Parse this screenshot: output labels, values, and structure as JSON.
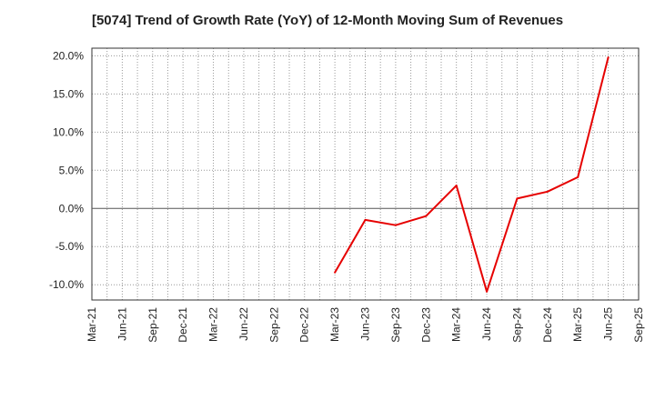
{
  "chart_data": {
    "type": "line",
    "title": "[5074]  Trend of Growth Rate (YoY) of 12-Month Moving Sum of Revenues",
    "xlabel": "",
    "ylabel": "",
    "x_ticks": [
      "Mar-21",
      "Jun-21",
      "Sep-21",
      "Dec-21",
      "Mar-22",
      "Jun-22",
      "Sep-22",
      "Dec-22",
      "Mar-23",
      "Jun-23",
      "Sep-23",
      "Dec-23",
      "Mar-24",
      "Jun-24",
      "Sep-24",
      "Dec-24",
      "Mar-25",
      "Jun-25",
      "Sep-25"
    ],
    "y_ticks": [
      "20.0%",
      "15.0%",
      "10.0%",
      "5.0%",
      "0.0%",
      "-5.0%",
      "-10.0%"
    ],
    "y_tick_values": [
      20,
      15,
      10,
      5,
      0,
      -5,
      -10
    ],
    "ylim": [
      -12,
      21
    ],
    "grid": true,
    "line_color": "#e60000",
    "series": [
      {
        "x": [
          "Mar-23",
          "Jun-23",
          "Sep-23",
          "Dec-23",
          "Mar-24",
          "Jun-24",
          "Sep-24",
          "Dec-24",
          "Mar-25",
          "Jun-25"
        ],
        "values": [
          -8.4,
          -1.5,
          -2.2,
          -1.0,
          3.0,
          -10.9,
          1.3,
          2.2,
          4.1,
          19.8
        ]
      }
    ]
  }
}
